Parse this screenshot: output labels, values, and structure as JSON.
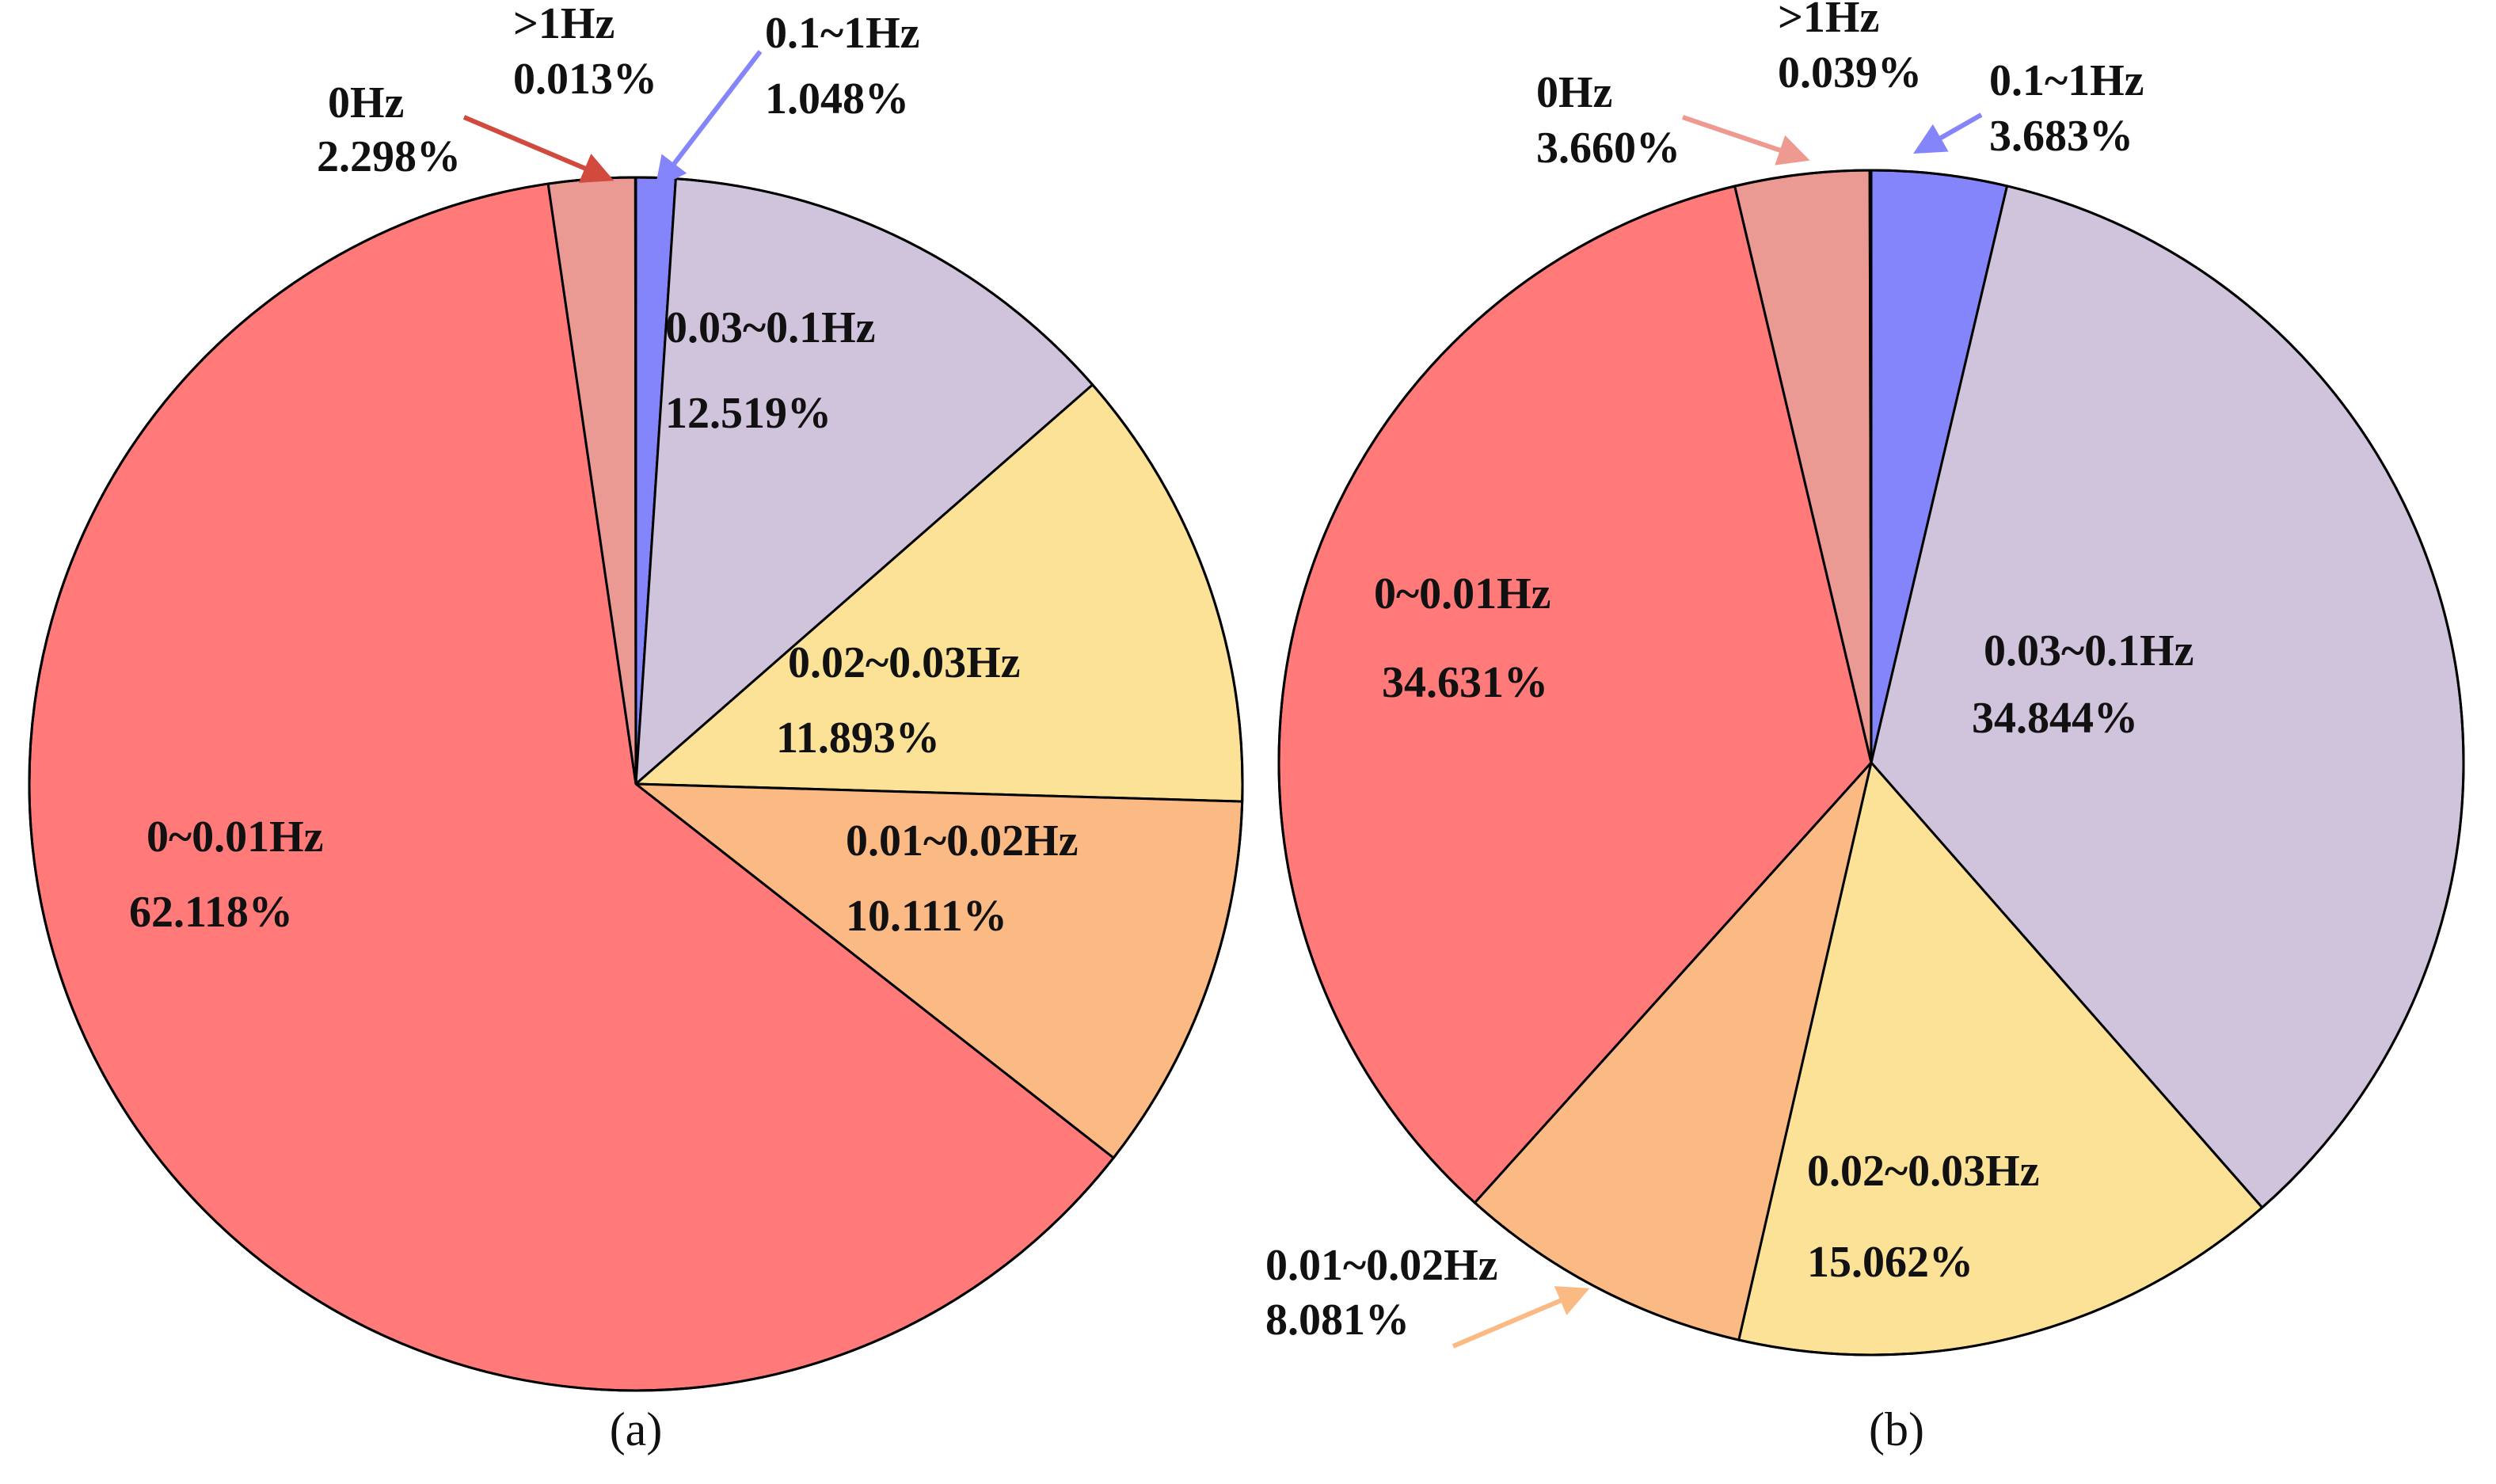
{
  "chart_data": [
    {
      "type": "pie",
      "caption": "(a)",
      "start_angle_deg": 0,
      "direction": "clockwise",
      "slices": [
        {
          "key": "0.1-1",
          "label": "0.1~1Hz",
          "value": 1.048,
          "value_text": "1.048%",
          "color": "#8585FB"
        },
        {
          "key": "0.03-0.1",
          "label": "0.03~0.1Hz",
          "value": 12.519,
          "value_text": "12.519%",
          "color": "#D0C3DC"
        },
        {
          "key": "0.02-0.03",
          "label": "0.02~0.03Hz",
          "value": 11.893,
          "value_text": "11.893%",
          "color": "#FCE296"
        },
        {
          "key": "0.01-0.02",
          "label": "0.01~0.02Hz",
          "value": 10.111,
          "value_text": "10.111%",
          "color": "#FBB984"
        },
        {
          "key": "0-0.01",
          "label": "0~0.01Hz",
          "value": 62.118,
          "value_text": "62.118%",
          "color": "#FF7A79"
        },
        {
          "key": "0",
          "label": "0Hz",
          "value": 2.298,
          "value_text": "2.298%",
          "color": "#EA9A93"
        },
        {
          "key": ">1",
          "label": ">1Hz",
          "value": 0.013,
          "value_text": "0.013%",
          "color": "#8B8BEF"
        }
      ],
      "arrow_colors": {
        "0": "#D24A3E",
        "0.1-1": "#8585FB"
      }
    },
    {
      "type": "pie",
      "caption": "(b)",
      "start_angle_deg": 0,
      "direction": "clockwise",
      "slices": [
        {
          "key": "0.1-1",
          "label": "0.1~1Hz",
          "value": 3.683,
          "value_text": "3.683%",
          "color": "#8585FB"
        },
        {
          "key": "0.03-0.1",
          "label": "0.03~0.1Hz",
          "value": 34.844,
          "value_text": "34.844%",
          "color": "#D0C3DC"
        },
        {
          "key": "0.02-0.03",
          "label": "0.02~0.03Hz",
          "value": 15.062,
          "value_text": "15.062%",
          "color": "#FCE296"
        },
        {
          "key": "0.01-0.02",
          "label": "0.01~0.02Hz",
          "value": 8.081,
          "value_text": "8.081%",
          "color": "#FBB984"
        },
        {
          "key": "0-0.01",
          "label": "0~0.01Hz",
          "value": 34.631,
          "value_text": "34.631%",
          "color": "#FF7A79"
        },
        {
          "key": "0",
          "label": "0Hz",
          "value": 3.66,
          "value_text": "3.660%",
          "color": "#EA9A93"
        },
        {
          "key": ">1",
          "label": ">1Hz",
          "value": 0.039,
          "value_text": "0.039%",
          "color": "#8B8BEF"
        }
      ],
      "arrow_colors": {
        "0": "#EE9A90",
        "0.1-1": "#8585FB",
        "0.01-0.02": "#FBB984"
      }
    }
  ]
}
